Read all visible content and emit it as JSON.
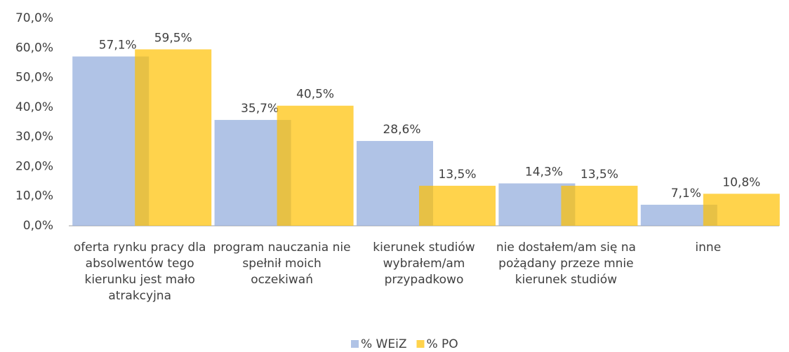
{
  "chart_data": {
    "type": "bar",
    "categories": [
      "oferta rynku pracy dla absolwentów tego kierunku jest mało atrakcyjna",
      "program nauczania nie spełnił moich oczekiwań",
      "kierunek studiów wybrałem/am przypadkowo",
      "nie dostałem/am się na pożądany przeze mnie kierunek studiów",
      "inne"
    ],
    "series": [
      {
        "name": "% WEiZ",
        "color": "#8faadc",
        "values": [
          57.1,
          35.7,
          28.6,
          14.3,
          7.1
        ],
        "value_labels": [
          "57,1%",
          "35,7%",
          "28,6%",
          "14,3%",
          "7,1%"
        ]
      },
      {
        "name": "% PO",
        "color": "#ffc000",
        "values": [
          59.5,
          40.5,
          13.5,
          13.5,
          10.8
        ],
        "value_labels": [
          "59,5%",
          "40,5%",
          "13,5%",
          "13,5%",
          "10,8%"
        ]
      }
    ],
    "ylim": [
      0,
      70
    ],
    "yticks": [
      {
        "value": 0,
        "label": "0,0%"
      },
      {
        "value": 10,
        "label": "10,0%"
      },
      {
        "value": 20,
        "label": "20,0%"
      },
      {
        "value": 30,
        "label": "30,0%"
      },
      {
        "value": 40,
        "label": "40,0%"
      },
      {
        "value": 50,
        "label": "50,0%"
      },
      {
        "value": 60,
        "label": "60,0%"
      },
      {
        "value": 70,
        "label": "70,0%"
      }
    ],
    "grid": false,
    "legend": "bottom"
  }
}
